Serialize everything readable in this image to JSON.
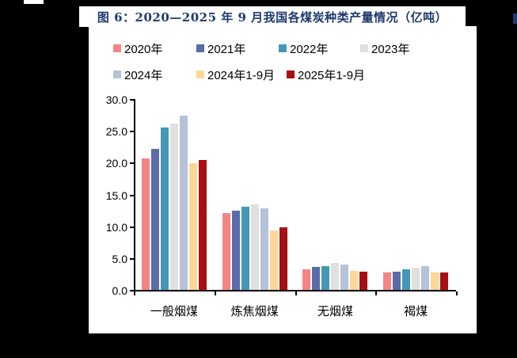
{
  "page": {
    "background": "#000000"
  },
  "title": {
    "text": "图 6：2020—2025 年 9 月我国各煤炭种类产量情况（亿吨）",
    "color": "#1E3A6E"
  },
  "adjacent_fragment": {
    "color": "#1E3A6E"
  },
  "chart_data": {
    "type": "bar",
    "title": "2020—2025 年 9 月我国各煤炭种类产量情况（亿吨）",
    "unit": "亿吨",
    "categories": [
      "一般烟煤",
      "炼焦烟煤",
      "无烟煤",
      "褐煤"
    ],
    "series": [
      {
        "name": "2020年",
        "color": "#F68484",
        "values": [
          20.7,
          12.1,
          3.3,
          2.7
        ]
      },
      {
        "name": "2021年",
        "color": "#5B6CA8",
        "values": [
          22.2,
          12.5,
          3.6,
          2.9
        ]
      },
      {
        "name": "2022年",
        "color": "#4498B5",
        "values": [
          25.5,
          13.1,
          3.8,
          3.3
        ]
      },
      {
        "name": "2023年",
        "color": "#E0E0E0",
        "values": [
          26.1,
          13.4,
          4.3,
          3.5
        ]
      },
      {
        "name": "2024年",
        "color": "#B5C2D8",
        "values": [
          27.4,
          12.8,
          4.0,
          3.7
        ]
      },
      {
        "name": "2024年1-9月",
        "color": "#FCD795",
        "values": [
          19.9,
          9.4,
          3.0,
          2.7
        ]
      },
      {
        "name": "2025年1-9月",
        "color": "#A80F12",
        "values": [
          20.4,
          9.8,
          2.9,
          2.8
        ]
      }
    ],
    "y_tick_labels": [
      "30.0",
      "25.0",
      "20.0",
      "15.0",
      "10.0",
      "5.0",
      "0.0"
    ],
    "ylim": [
      0,
      30
    ],
    "grid": false,
    "legend_position": "top",
    "xlabel": "",
    "ylabel": ""
  }
}
